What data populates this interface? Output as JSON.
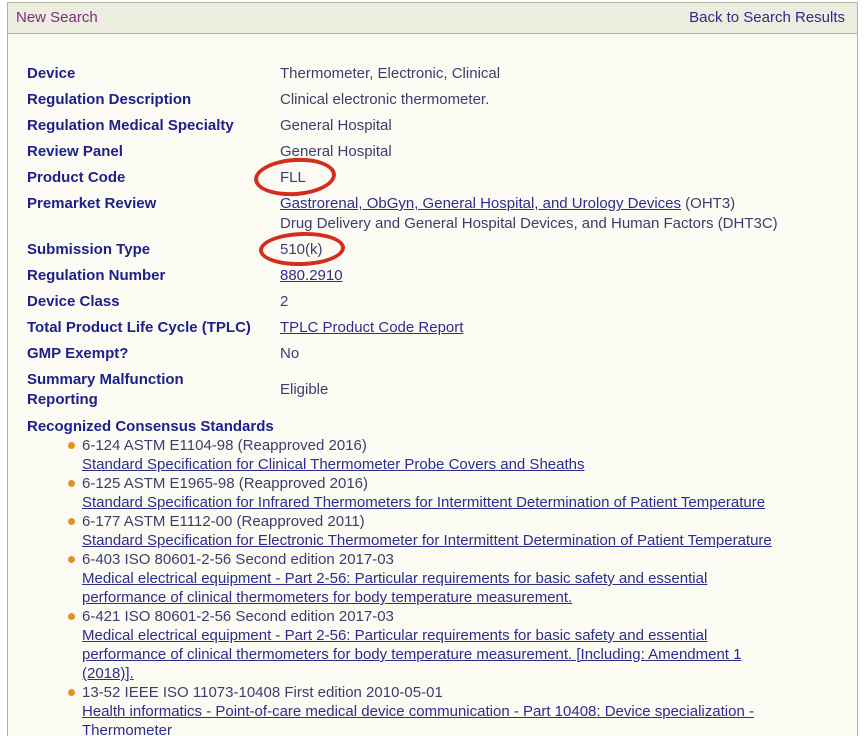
{
  "topbar": {
    "new_search_label": "New Search",
    "back_label": "Back to Search Results"
  },
  "details": {
    "rows": [
      {
        "label": "Device",
        "value": "Thermometer, Electronic, Clinical"
      },
      {
        "label": "Regulation Description",
        "value": "Clinical electronic thermometer."
      },
      {
        "label": "Regulation Medical Specialty",
        "value": "General Hospital"
      },
      {
        "label": "Review Panel",
        "value": "General Hospital"
      },
      {
        "label": "Product Code",
        "value": "FLL",
        "annotation": "red-circle"
      },
      {
        "label": "Premarket Review",
        "link1": "Gastrorenal, ObGyn, General Hospital, and Urology Devices",
        "suffix1": " (OHT3)",
        "line2": "Drug Delivery and General Hospital Devices, and Human Factors (DHT3C)"
      },
      {
        "label": "Submission Type",
        "value": "510(k)",
        "annotation": "red-circle"
      },
      {
        "label": "Regulation Number",
        "value": "880.2910",
        "is_link": true
      },
      {
        "label": "Device Class",
        "value": "2"
      },
      {
        "label": "Total Product Life Cycle (TPLC)",
        "value": "TPLC Product Code Report",
        "is_link": true
      },
      {
        "label": "GMP Exempt?",
        "value": "No"
      },
      {
        "label": "Summary Malfunction\nReporting",
        "value": "Eligible"
      }
    ]
  },
  "standards": {
    "heading": "Recognized Consensus Standards",
    "items": [
      {
        "code": "6-124 ASTM E1104-98 (Reapproved 2016)",
        "title": "Standard Specification for Clinical Thermometer Probe Covers and Sheaths"
      },
      {
        "code": "6-125 ASTM E1965-98 (Reapproved 2016)",
        "title": "Standard Specification for Infrared Thermometers for Intermittent Determination of Patient Temperature"
      },
      {
        "code": "6-177 ASTM E1112-00 (Reapproved 2011)",
        "title": "Standard Specification for Electronic Thermometer for Intermittent Determination of Patient Temperature"
      },
      {
        "code": "6-403 ISO 80601-2-56 Second edition 2017-03",
        "title": "Medical electrical equipment - Part 2-56: Particular requirements for basic safety and essential\nperformance of clinical thermometers for body temperature measurement."
      },
      {
        "code": "6-421 ISO 80601-2-56 Second edition 2017-03",
        "title": "Medical electrical equipment - Part 2-56: Particular requirements for basic safety and essential\nperformance of clinical thermometers for body temperature measurement. [Including: Amendment 1\n(2018)]."
      },
      {
        "code": "13-52 IEEE ISO 11073-10408 First edition 2010-05-01",
        "title": "Health informatics - Point-of-care medical device communication - Part 10408: Device specialization -\nThermometer"
      }
    ]
  },
  "colors": {
    "annotation_red": "#d22d1e",
    "bullet_orange": "#dd9426",
    "link_navy": "#2d2d8f",
    "visited_purple": "#7c2f7c",
    "topbar_beige": "#ededdf"
  }
}
